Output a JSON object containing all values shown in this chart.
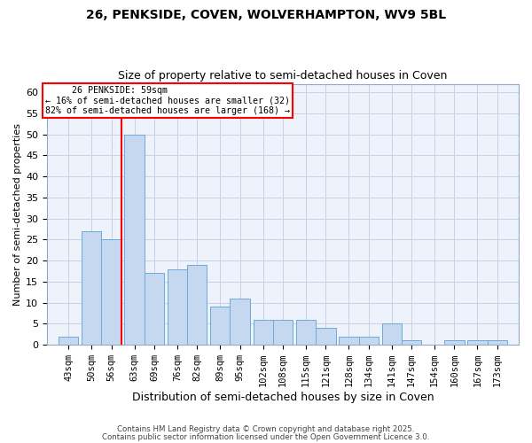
{
  "title1": "26, PENKSIDE, COVEN, WOLVERHAMPTON, WV9 5BL",
  "title2": "Size of property relative to semi-detached houses in Coven",
  "xlabel": "Distribution of semi-detached houses by size in Coven",
  "ylabel": "Number of semi-detached properties",
  "categories": [
    "43sqm",
    "50sqm",
    "56sqm",
    "63sqm",
    "69sqm",
    "76sqm",
    "82sqm",
    "89sqm",
    "95sqm",
    "102sqm",
    "108sqm",
    "115sqm",
    "121sqm",
    "128sqm",
    "134sqm",
    "141sqm",
    "147sqm",
    "154sqm",
    "160sqm",
    "167sqm",
    "173sqm"
  ],
  "values": [
    2,
    27,
    25,
    50,
    17,
    18,
    19,
    9,
    11,
    6,
    6,
    6,
    4,
    2,
    2,
    5,
    1,
    0,
    1,
    1,
    1
  ],
  "bar_color": "#c5d8f0",
  "bar_edge_color": "#6baad8",
  "red_line_label": "26 PENKSIDE: 59sqm",
  "annotation_line1": "← 16% of semi-detached houses are smaller (32)",
  "annotation_line2": "82% of semi-detached houses are larger (168) →",
  "ylim": [
    0,
    62
  ],
  "yticks": [
    0,
    5,
    10,
    15,
    20,
    25,
    30,
    35,
    40,
    45,
    50,
    55,
    60
  ],
  "footer1": "Contains HM Land Registry data © Crown copyright and database right 2025.",
  "footer2": "Contains public sector information licensed under the Open Government Licence 3.0.",
  "bg_color": "#eef2fb",
  "grid_color": "#c8d0e8",
  "title1_fontsize": 10,
  "title2_fontsize": 9
}
